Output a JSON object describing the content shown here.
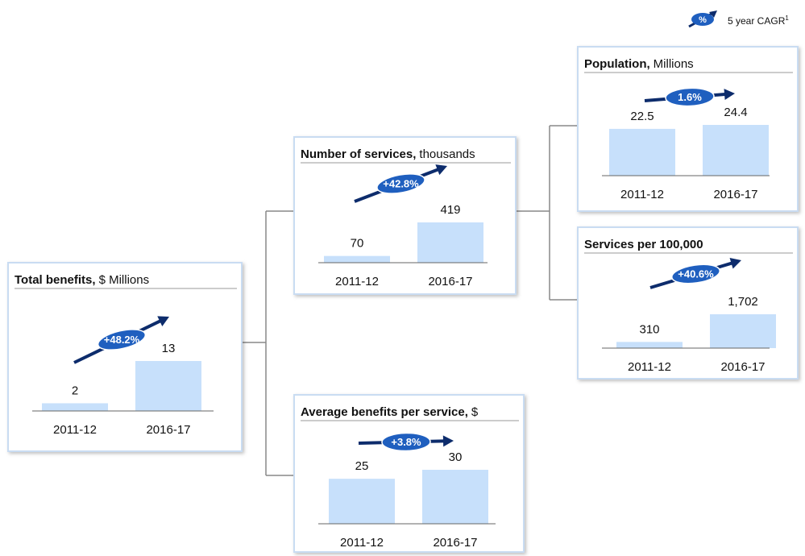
{
  "legend": {
    "badge": "%",
    "label": "5 year CAGR",
    "superscript": "1"
  },
  "boxes": [
    {
      "title": "Total benefits,",
      "unit": "$ Millions",
      "cagr": "+48.2%",
      "categories": [
        "2011-12",
        "2016-17"
      ],
      "values": [
        2,
        13
      ]
    },
    {
      "title": "Number of services,",
      "unit": "thousands",
      "cagr": "+42.8%",
      "categories": [
        "2011-12",
        "2016-17"
      ],
      "values": [
        70,
        419
      ]
    },
    {
      "title": "Average benefits per service,",
      "unit": "$",
      "cagr": "+3.8%",
      "categories": [
        "2011-12",
        "2016-17"
      ],
      "values": [
        25,
        30
      ]
    },
    {
      "title": "Population,",
      "unit": "Millions",
      "cagr": "1.6%",
      "categories": [
        "2011-12",
        "2016-17"
      ],
      "values": [
        22.5,
        24.4
      ]
    },
    {
      "title": "Services per 100,000",
      "cagr": "+40.6%",
      "categories": [
        "2011-12",
        "2016-17"
      ],
      "values": [
        310,
        1702
      ],
      "value_labels": [
        "310",
        "1,702"
      ]
    }
  ]
}
